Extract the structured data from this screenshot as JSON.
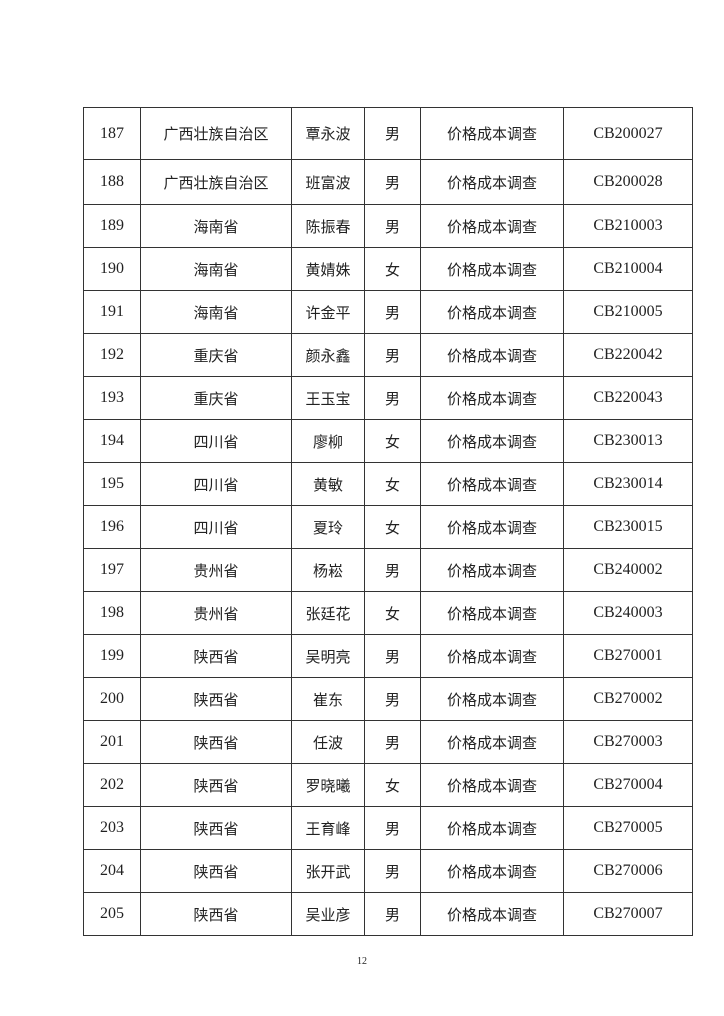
{
  "table": {
    "rows": [
      [
        "187",
        "广西壮族自治区",
        "覃永波",
        "男",
        "价格成本调查",
        "CB200027"
      ],
      [
        "188",
        "广西壮族自治区",
        "班富波",
        "男",
        "价格成本调查",
        "CB200028"
      ],
      [
        "189",
        "海南省",
        "陈振春",
        "男",
        "价格成本调查",
        "CB210003"
      ],
      [
        "190",
        "海南省",
        "黄婧姝",
        "女",
        "价格成本调查",
        "CB210004"
      ],
      [
        "191",
        "海南省",
        "许金平",
        "男",
        "价格成本调查",
        "CB210005"
      ],
      [
        "192",
        "重庆省",
        "颜永鑫",
        "男",
        "价格成本调查",
        "CB220042"
      ],
      [
        "193",
        "重庆省",
        "王玉宝",
        "男",
        "价格成本调查",
        "CB220043"
      ],
      [
        "194",
        "四川省",
        "廖柳",
        "女",
        "价格成本调查",
        "CB230013"
      ],
      [
        "195",
        "四川省",
        "黄敏",
        "女",
        "价格成本调查",
        "CB230014"
      ],
      [
        "196",
        "四川省",
        "夏玲",
        "女",
        "价格成本调查",
        "CB230015"
      ],
      [
        "197",
        "贵州省",
        "杨崧",
        "男",
        "价格成本调查",
        "CB240002"
      ],
      [
        "198",
        "贵州省",
        "张廷花",
        "女",
        "价格成本调查",
        "CB240003"
      ],
      [
        "199",
        "陕西省",
        "吴明亮",
        "男",
        "价格成本调查",
        "CB270001"
      ],
      [
        "200",
        "陕西省",
        "崔东",
        "男",
        "价格成本调查",
        "CB270002"
      ],
      [
        "201",
        "陕西省",
        "任波",
        "男",
        "价格成本调查",
        "CB270003"
      ],
      [
        "202",
        "陕西省",
        "罗晓曦",
        "女",
        "价格成本调查",
        "CB270004"
      ],
      [
        "203",
        "陕西省",
        "王育峰",
        "男",
        "价格成本调查",
        "CB270005"
      ],
      [
        "204",
        "陕西省",
        "张开武",
        "男",
        "价格成本调查",
        "CB270006"
      ],
      [
        "205",
        "陕西省",
        "吴业彦",
        "男",
        "价格成本调查",
        "CB270007"
      ]
    ]
  },
  "page_number": "12"
}
